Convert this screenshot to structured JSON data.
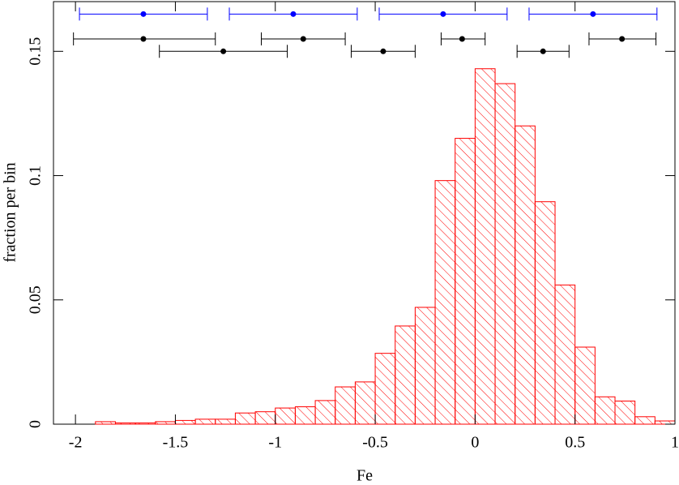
{
  "chart_data": {
    "type": "histogram",
    "xlabel": "Fe",
    "ylabel": "fraction per bin",
    "bins": [
      -1.9,
      -1.8,
      -1.7,
      -1.6,
      -1.5,
      -1.4,
      -1.3,
      -1.2,
      -1.1,
      -1.0,
      -0.9,
      -0.8,
      -0.7,
      -0.6,
      -0.5,
      -0.4,
      -0.3,
      -0.2,
      -0.1,
      0.0,
      0.1,
      0.2,
      0.3,
      0.4,
      0.5,
      0.6,
      0.7,
      0.8,
      0.9,
      1.0
    ],
    "values": [
      0.001,
      0.0005,
      0.0005,
      0.001,
      0.0015,
      0.002,
      0.002,
      0.0045,
      0.005,
      0.0065,
      0.007,
      0.0095,
      0.015,
      0.017,
      0.0285,
      0.0395,
      0.047,
      0.098,
      0.115,
      0.143,
      0.137,
      0.12,
      0.0895,
      0.056,
      0.031,
      0.011,
      0.0093,
      0.003,
      0.0013
    ],
    "color": "#ff0000",
    "xlim": [
      -2.11,
      1.0
    ],
    "ylim": [
      0,
      0.17
    ],
    "xticks": [
      -2,
      -1.5,
      -1,
      -0.5,
      0,
      0.5,
      1
    ],
    "yticks": [
      0,
      0.05,
      0.1,
      0.15
    ],
    "errorbars": [
      {
        "color": "#0000ff",
        "x": [
          -1.66,
          -0.91,
          -0.16,
          0.59
        ],
        "y": [
          0.165,
          0.165,
          0.165,
          0.165
        ],
        "xmin": [
          -1.98,
          -1.23,
          -0.48,
          0.27
        ],
        "xmax": [
          -1.34,
          -0.59,
          0.16,
          0.91
        ]
      },
      {
        "color": "#000000",
        "x": [
          -1.66,
          -0.86,
          -0.065,
          0.735
        ],
        "y": [
          0.155,
          0.155,
          0.155,
          0.155
        ],
        "xmin": [
          -2.01,
          -1.07,
          -0.17,
          0.57
        ],
        "xmax": [
          -1.3,
          -0.65,
          0.05,
          0.905
        ]
      },
      {
        "color": "#000000",
        "x": [
          -1.26,
          -0.46,
          0.34
        ],
        "y": [
          0.15,
          0.15,
          0.15
        ],
        "xmin": [
          -1.58,
          -0.62,
          0.21
        ],
        "xmax": [
          -0.94,
          -0.3,
          0.47
        ]
      }
    ]
  }
}
